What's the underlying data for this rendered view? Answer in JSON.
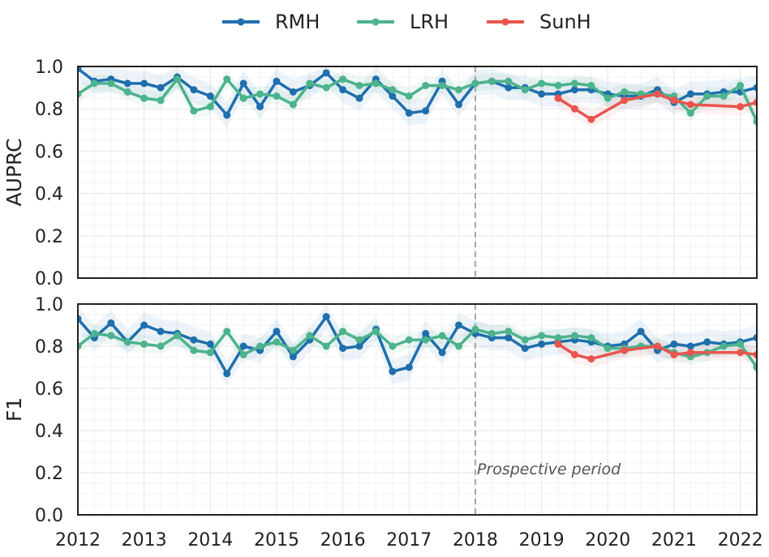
{
  "colors": {
    "RMH": "#1f6fad",
    "LRH": "#4cb38c",
    "SunH": "#e8554e",
    "axis": "#222222",
    "grid": "#e9e9e9",
    "vline": "#a6a6a6",
    "annotation": "#555555"
  },
  "legend": {
    "position": "top-center"
  },
  "chart_data": [
    {
      "type": "line",
      "ylabel": "AUPRC",
      "xlabel": "",
      "xlim": [
        2012,
        2022.25
      ],
      "ylim": [
        0,
        1
      ],
      "y_ticks": [
        "0.0",
        "0.2",
        "0.4",
        "0.6",
        "0.8",
        "1.0"
      ],
      "x_ticks": [],
      "grid": true,
      "vline_x": 2018,
      "annotation": "",
      "series": [
        {
          "name": "RMH",
          "x": [
            2012,
            2012.25,
            2012.5,
            2012.75,
            2013,
            2013.25,
            2013.5,
            2013.75,
            2014,
            2014.25,
            2014.5,
            2014.75,
            2015,
            2015.25,
            2015.5,
            2015.75,
            2016,
            2016.25,
            2016.5,
            2016.75,
            2017,
            2017.25,
            2017.5,
            2017.75,
            2018,
            2018.25,
            2018.5,
            2018.75,
            2019,
            2019.25,
            2019.5,
            2019.75,
            2020,
            2020.25,
            2020.5,
            2020.75,
            2021,
            2021.25,
            2021.5,
            2021.75,
            2022,
            2022.25
          ],
          "y": [
            0.99,
            0.93,
            0.94,
            0.92,
            0.92,
            0.9,
            0.95,
            0.89,
            0.86,
            0.77,
            0.92,
            0.81,
            0.93,
            0.88,
            0.91,
            0.97,
            0.89,
            0.85,
            0.94,
            0.86,
            0.78,
            0.79,
            0.93,
            0.82,
            0.92,
            0.93,
            0.9,
            0.9,
            0.87,
            0.87,
            0.89,
            0.89,
            0.87,
            0.86,
            0.86,
            0.89,
            0.83,
            0.87,
            0.87,
            0.88,
            0.88,
            0.9
          ]
        },
        {
          "name": "LRH",
          "x": [
            2012,
            2012.25,
            2012.5,
            2012.75,
            2013,
            2013.25,
            2013.5,
            2013.75,
            2014,
            2014.25,
            2014.5,
            2014.75,
            2015,
            2015.25,
            2015.5,
            2015.75,
            2016,
            2016.25,
            2016.5,
            2016.75,
            2017,
            2017.25,
            2017.5,
            2017.75,
            2018,
            2018.25,
            2018.5,
            2018.75,
            2019,
            2019.25,
            2019.5,
            2019.75,
            2020,
            2020.25,
            2020.5,
            2020.75,
            2021,
            2021.25,
            2021.5,
            2021.75,
            2022,
            2022.25
          ],
          "y": [
            0.87,
            0.92,
            0.92,
            0.88,
            0.85,
            0.84,
            0.94,
            0.79,
            0.81,
            0.94,
            0.85,
            0.87,
            0.86,
            0.82,
            0.92,
            0.9,
            0.94,
            0.91,
            0.92,
            0.89,
            0.86,
            0.91,
            0.91,
            0.89,
            0.92,
            0.93,
            0.93,
            0.89,
            0.92,
            0.91,
            0.92,
            0.91,
            0.85,
            0.88,
            0.87,
            0.87,
            0.86,
            0.78,
            0.86,
            0.86,
            0.91,
            0.74
          ]
        },
        {
          "name": "SunH",
          "x": [
            2019.25,
            2019.5,
            2019.75,
            2020.25,
            2020.75,
            2021,
            2021.25,
            2022,
            2022.25
          ],
          "y": [
            0.85,
            0.8,
            0.75,
            0.84,
            0.87,
            0.84,
            0.82,
            0.81,
            0.83
          ]
        }
      ]
    },
    {
      "type": "line",
      "ylabel": "F1",
      "xlabel": "",
      "xlim": [
        2012,
        2022.25
      ],
      "ylim": [
        0,
        1
      ],
      "y_ticks": [
        "0.0",
        "0.2",
        "0.4",
        "0.6",
        "0.8",
        "1.0"
      ],
      "x_ticks": [
        "2012",
        "2013",
        "2014",
        "2015",
        "2016",
        "2017",
        "2018",
        "2019",
        "2020",
        "2021",
        "2022"
      ],
      "grid": true,
      "vline_x": 2018,
      "annotation": "Prospective period",
      "annotation_x": 2018,
      "annotation_y": 0.2,
      "series": [
        {
          "name": "RMH",
          "x": [
            2012,
            2012.25,
            2012.5,
            2012.75,
            2013,
            2013.25,
            2013.5,
            2013.75,
            2014,
            2014.25,
            2014.5,
            2014.75,
            2015,
            2015.25,
            2015.5,
            2015.75,
            2016,
            2016.25,
            2016.5,
            2016.75,
            2017,
            2017.25,
            2017.5,
            2017.75,
            2018,
            2018.25,
            2018.5,
            2018.75,
            2019,
            2019.25,
            2019.5,
            2019.75,
            2020,
            2020.25,
            2020.5,
            2020.75,
            2021,
            2021.25,
            2021.5,
            2021.75,
            2022,
            2022.25
          ],
          "y": [
            0.93,
            0.84,
            0.91,
            0.82,
            0.9,
            0.87,
            0.86,
            0.83,
            0.81,
            0.67,
            0.8,
            0.78,
            0.87,
            0.75,
            0.83,
            0.94,
            0.79,
            0.8,
            0.88,
            0.68,
            0.7,
            0.86,
            0.77,
            0.9,
            0.86,
            0.84,
            0.84,
            0.79,
            0.81,
            0.82,
            0.83,
            0.82,
            0.8,
            0.81,
            0.87,
            0.78,
            0.81,
            0.8,
            0.82,
            0.81,
            0.82,
            0.84
          ]
        },
        {
          "name": "LRH",
          "x": [
            2012,
            2012.25,
            2012.5,
            2012.75,
            2013,
            2013.25,
            2013.5,
            2013.75,
            2014,
            2014.25,
            2014.5,
            2014.75,
            2015,
            2015.25,
            2015.5,
            2015.75,
            2016,
            2016.25,
            2016.5,
            2016.75,
            2017,
            2017.25,
            2017.5,
            2017.75,
            2018,
            2018.25,
            2018.5,
            2018.75,
            2019,
            2019.25,
            2019.5,
            2019.75,
            2020,
            2020.25,
            2020.5,
            2020.75,
            2021,
            2021.25,
            2021.5,
            2021.75,
            2022,
            2022.25
          ],
          "y": [
            0.8,
            0.86,
            0.85,
            0.82,
            0.81,
            0.8,
            0.85,
            0.78,
            0.77,
            0.87,
            0.76,
            0.8,
            0.82,
            0.78,
            0.85,
            0.8,
            0.87,
            0.83,
            0.87,
            0.8,
            0.83,
            0.83,
            0.85,
            0.8,
            0.88,
            0.86,
            0.87,
            0.83,
            0.85,
            0.84,
            0.85,
            0.84,
            0.79,
            0.79,
            0.8,
            0.8,
            0.77,
            0.75,
            0.77,
            0.8,
            0.81,
            0.7
          ]
        },
        {
          "name": "SunH",
          "x": [
            2019.25,
            2019.5,
            2019.75,
            2020.25,
            2020.75,
            2021,
            2021.25,
            2022,
            2022.25
          ],
          "y": [
            0.81,
            0.76,
            0.74,
            0.78,
            0.8,
            0.76,
            0.77,
            0.77,
            0.76
          ]
        }
      ]
    }
  ]
}
